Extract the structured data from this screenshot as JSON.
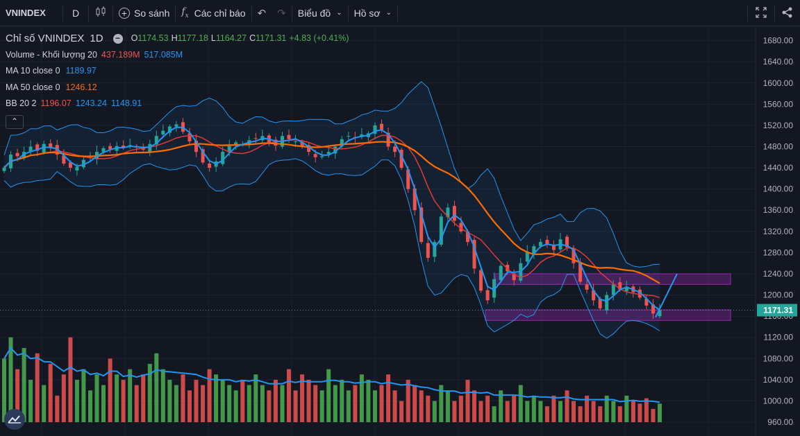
{
  "toolbar": {
    "symbol": "VNINDEX",
    "interval": "D",
    "compare_label": "So sánh",
    "indicators_label": "Các chỉ báo",
    "chart_label": "Biểu đồ",
    "profile_label": "Hồ sơ",
    "icons": [
      "candles-icon",
      "plus-circle-icon",
      "fx-icon",
      "undo-icon",
      "redo-icon",
      "fullscreen-icon",
      "share-icon"
    ]
  },
  "legend": {
    "title": "Chỉ số VNINDEX",
    "resolution": "1D",
    "open_label": "O",
    "open": "1174.53",
    "high_label": "H",
    "high": "1177.18",
    "low_label": "L",
    "low": "1164.27",
    "close_label": "C",
    "close": "1171.31",
    "change": "+4.83 (+0.41%)",
    "volume_label": "Volume - Khối lượng 20",
    "volume_value": "437.189M",
    "volume_ma": "517.085M",
    "ma10_label": "MA 10 close 0",
    "ma10_value": "1189.97",
    "ma50_label": "MA 50 close 0",
    "ma50_value": "1246.12",
    "bb_label": "BB 20 2",
    "bb_mid": "1196.07",
    "bb_upper": "1243.24",
    "bb_lower": "1148.91",
    "collapse_icon": "chevron-up-icon"
  },
  "colors": {
    "up": "#26a69a",
    "down": "#ef5350",
    "ma10": "#2196f3",
    "ma50": "#ff6d00",
    "bb_mid": "#e53935",
    "bb_band": "#2196f3",
    "zone": "#9c27b0",
    "background": "#131722"
  },
  "chart_data": {
    "type": "candlestick",
    "price_axis_ticks": [
      "1680.00",
      "1640.00",
      "1600.00",
      "1560.00",
      "1520.00",
      "1480.00",
      "1440.00",
      "1400.00",
      "1360.00",
      "1320.00",
      "1280.00",
      "1240.00",
      "1200.00",
      "1160.00",
      "1120.00",
      "1080.00",
      "1040.00",
      "1000.00",
      "960.00"
    ],
    "ylim": [
      950,
      1700
    ],
    "last_price": "1171.31",
    "close_path": [
      1440,
      1465,
      1462,
      1470,
      1480,
      1472,
      1485,
      1478,
      1465,
      1448,
      1440,
      1442,
      1455,
      1460,
      1470,
      1477,
      1475,
      1481,
      1478,
      1483,
      1478,
      1474,
      1485,
      1500,
      1510,
      1518,
      1522,
      1508,
      1490,
      1470,
      1450,
      1440,
      1452,
      1470,
      1481,
      1488,
      1484,
      1492,
      1495,
      1500,
      1488,
      1482,
      1500,
      1494,
      1490,
      1480,
      1470,
      1460,
      1462,
      1470,
      1480,
      1494,
      1500,
      1496,
      1503,
      1505,
      1520,
      1510,
      1480,
      1470,
      1440,
      1400,
      1360,
      1300,
      1270,
      1300,
      1348,
      1365,
      1340,
      1320,
      1300,
      1250,
      1208,
      1190,
      1230,
      1255,
      1245,
      1228,
      1260,
      1282,
      1292,
      1300,
      1296,
      1285,
      1305,
      1290,
      1260,
      1225,
      1210,
      1190,
      1175,
      1200,
      1220,
      1210,
      1215,
      1205,
      1195,
      1180,
      1165,
      1171
    ],
    "volume_path": [
      1080,
      1120,
      1060,
      1100,
      1040,
      1090,
      1030,
      1070,
      1010,
      1050,
      1120,
      1040,
      1060,
      1020,
      1050,
      1030,
      1080,
      1050,
      1040,
      1060,
      1030,
      1050,
      1070,
      1090,
      1060,
      1040,
      1030,
      1050,
      1020,
      1040,
      1030,
      1060,
      1050,
      1040,
      1030,
      1020,
      1040,
      1030,
      1050,
      1030,
      1020,
      1040,
      1030,
      1060,
      1020,
      1050,
      1040,
      1030,
      1020,
      1060,
      1030,
      1040,
      1020,
      1030,
      1050,
      1040,
      1020,
      1030,
      1050,
      1020,
      1000,
      1040,
      1030,
      1020,
      1010,
      1000,
      1030,
      1020,
      1000,
      1010,
      1040,
      1020,
      1000,
      1010,
      990,
      1020,
      1000,
      1010,
      1030,
      1000,
      1010,
      1000,
      990,
      1010,
      1000,
      1020,
      1000,
      990,
      1010,
      1000,
      990,
      1010,
      1000,
      990,
      1010,
      1000,
      995,
      1005,
      985,
      995
    ],
    "zones": [
      {
        "top": 1240,
        "bottom": 1220,
        "from": 0.765,
        "to": 1.0
      },
      {
        "top": 1172,
        "bottom": 1152,
        "from": 0.75,
        "to": 1.0
      }
    ],
    "projection": [
      [
        1171,
        1171
      ],
      [
        1240,
        1240
      ]
    ]
  }
}
